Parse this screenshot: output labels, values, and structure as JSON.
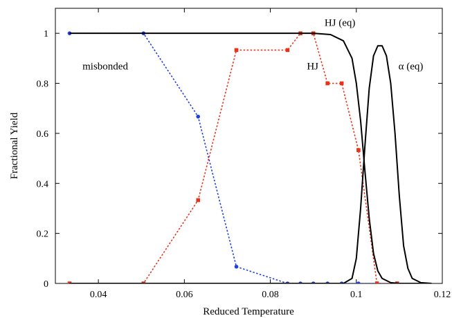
{
  "chart_data": {
    "type": "line",
    "xlabel": "Reduced Temperature",
    "ylabel": "Fractional Yield",
    "xlim": [
      0.03,
      0.12
    ],
    "ylim": [
      0,
      1.1
    ],
    "xticks": [
      0.04,
      0.06,
      0.08,
      0.1,
      0.12
    ],
    "xtick_labels": [
      "0.04",
      "0.06",
      "0.08",
      "0.1",
      "0.12"
    ],
    "yticks": [
      0,
      0.2,
      0.4,
      0.6,
      0.8,
      1
    ],
    "ytick_labels": [
      "0",
      "0.2",
      "0.4",
      "0.6",
      "0.8",
      "1"
    ],
    "grid": false,
    "series": [
      {
        "name": "misbonded",
        "style": "dotted",
        "marker": "circle",
        "color": "#1f3fe0",
        "x": [
          0.0333,
          0.0505,
          0.0632,
          0.0721,
          0.084,
          0.087,
          0.09,
          0.0933,
          0.0966,
          0.1005,
          0.1048,
          0.1095
        ],
        "y": [
          1,
          1,
          0.667,
          0.067,
          0,
          0,
          0,
          0,
          0,
          0,
          0,
          0
        ]
      },
      {
        "name": "HJ",
        "style": "dotted",
        "marker": "square",
        "color": "#e8331a",
        "x": [
          0.0333,
          0.0505,
          0.0632,
          0.0721,
          0.084,
          0.087,
          0.09,
          0.0933,
          0.0966,
          0.1005,
          0.1048,
          0.1095
        ],
        "y": [
          0,
          0,
          0.333,
          0.933,
          0.933,
          1,
          1,
          0.8,
          0.8,
          0.533,
          0,
          0
        ]
      },
      {
        "name": "HJ (eq)",
        "style": "solid",
        "color": "#000000",
        "x": [
          0.0333,
          0.09,
          0.094,
          0.097,
          0.099,
          0.1,
          0.101,
          0.102,
          0.103,
          0.104,
          0.105,
          0.106,
          0.108,
          0.11,
          0.1175
        ],
        "y": [
          1,
          1,
          0.995,
          0.97,
          0.9,
          0.8,
          0.65,
          0.45,
          0.26,
          0.12,
          0.05,
          0.02,
          0.003,
          0,
          0
        ]
      },
      {
        "name": "α (eq)",
        "style": "solid",
        "color": "#000000",
        "x": [
          0.0333,
          0.097,
          0.099,
          0.1,
          0.101,
          0.102,
          0.103,
          0.104,
          0.105,
          0.106,
          0.107,
          0.108,
          0.109,
          0.11,
          0.111,
          0.112,
          0.113,
          0.115,
          0.1175
        ],
        "y": [
          0,
          0,
          0.02,
          0.1,
          0.3,
          0.55,
          0.78,
          0.91,
          0.95,
          0.95,
          0.91,
          0.8,
          0.6,
          0.35,
          0.15,
          0.06,
          0.02,
          0.003,
          0
        ]
      }
    ],
    "annotations": [
      {
        "text": "misbonded",
        "x": 0.0363,
        "y": 0.855
      },
      {
        "text": "HJ",
        "x": 0.0885,
        "y": 0.855
      },
      {
        "text": "HJ (eq)",
        "x": 0.0926,
        "y": 1.03
      },
      {
        "text": "α (eq)",
        "x": 0.1098,
        "y": 0.855
      }
    ]
  }
}
